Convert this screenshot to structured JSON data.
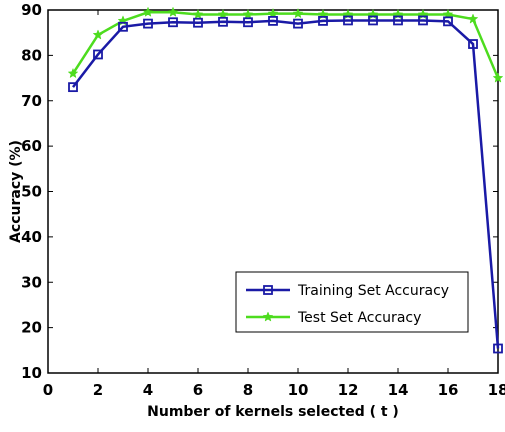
{
  "chart_data": {
    "type": "line",
    "title": "",
    "xlabel": "Number of kernels selected ( t )",
    "ylabel": "Accuracy (%)",
    "xlim": [
      0,
      18
    ],
    "ylim": [
      10,
      90
    ],
    "xticks": [
      "0",
      "2",
      "4",
      "6",
      "8",
      "10",
      "12",
      "14",
      "16",
      "18"
    ],
    "yticks": [
      "10",
      "20",
      "30",
      "40",
      "50",
      "60",
      "70",
      "80",
      "90"
    ],
    "grid": false,
    "legend_position": "bottom-right",
    "x": [
      1,
      2,
      3,
      4,
      5,
      6,
      7,
      8,
      9,
      10,
      11,
      12,
      13,
      14,
      15,
      16,
      17,
      18
    ],
    "series": [
      {
        "name": "Training Set Accuracy",
        "color": "#1a1aa6",
        "marker": "square",
        "values": [
          73,
          80.2,
          86.3,
          87,
          87.3,
          87.2,
          87.4,
          87.3,
          87.6,
          87,
          87.6,
          87.7,
          87.7,
          87.7,
          87.7,
          87.5,
          82.5,
          15.4
        ]
      },
      {
        "name": "Test Set Accuracy",
        "color": "#4ddc1e",
        "marker": "star",
        "values": [
          76,
          84.5,
          87.6,
          89.5,
          89.5,
          89,
          89,
          89,
          89.2,
          89.2,
          89,
          89,
          89,
          89,
          89,
          89,
          88,
          75
        ]
      }
    ]
  }
}
